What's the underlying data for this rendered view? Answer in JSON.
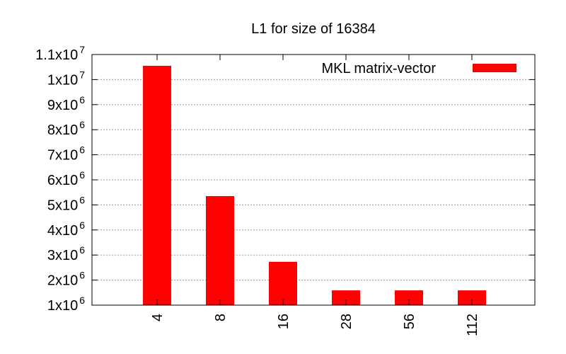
{
  "chart_data": {
    "type": "bar",
    "title": "L1 for size of 16384",
    "xlabel": "",
    "ylabel": "",
    "categories": [
      "4",
      "8",
      "16",
      "28",
      "56",
      "112"
    ],
    "series": [
      {
        "name": "MKL matrix-vector",
        "color": "#ff0000",
        "values": [
          10550000,
          5350000,
          2730000,
          1590000,
          1590000,
          1590000
        ]
      }
    ],
    "ylim": [
      1000000,
      11000000
    ],
    "yticks": [
      {
        "value": 1000000,
        "mantissa": "1x10",
        "exp": "6"
      },
      {
        "value": 2000000,
        "mantissa": "2x10",
        "exp": "6"
      },
      {
        "value": 3000000,
        "mantissa": "3x10",
        "exp": "6"
      },
      {
        "value": 4000000,
        "mantissa": "4x10",
        "exp": "6"
      },
      {
        "value": 5000000,
        "mantissa": "5x10",
        "exp": "6"
      },
      {
        "value": 6000000,
        "mantissa": "6x10",
        "exp": "6"
      },
      {
        "value": 7000000,
        "mantissa": "7x10",
        "exp": "6"
      },
      {
        "value": 8000000,
        "mantissa": "8x10",
        "exp": "6"
      },
      {
        "value": 9000000,
        "mantissa": "9x10",
        "exp": "6"
      },
      {
        "value": 10000000,
        "mantissa": "1x10",
        "exp": "7"
      },
      {
        "value": 11000000,
        "mantissa": "1.1x10",
        "exp": "7"
      }
    ],
    "grid": true,
    "legend": "top-right"
  }
}
